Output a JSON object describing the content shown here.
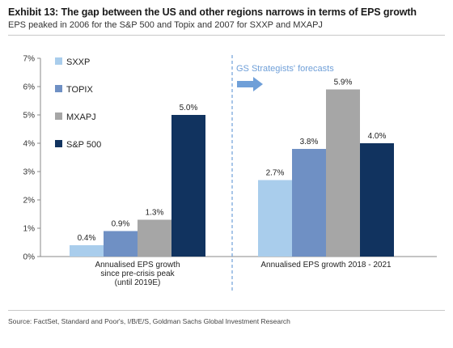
{
  "header": {
    "title": "Exhibit 13: The gap between the US and other regions narrows in terms of EPS growth",
    "subtitle": "EPS peaked in 2006 for the S&P 500 and Topix and 2007 for SXXP and MXAPJ"
  },
  "footer": {
    "source": "Source: FactSet, Standard and Poor's, I/B/E/S, Goldman Sachs Global Investment Research"
  },
  "chart_data": {
    "type": "bar",
    "categories": [
      "Annualised EPS growth since pre-crisis peak (until 2019E)",
      "Annualised EPS growth 2018 - 2021"
    ],
    "category_label_lines": [
      [
        "Annualised EPS growth",
        "since pre-crisis peak",
        "(until 2019E)"
      ],
      [
        "Annualised EPS growth 2018 - 2021"
      ]
    ],
    "series": [
      {
        "name": "SXXP",
        "color": "#a9cdec",
        "values": [
          0.4,
          2.7
        ]
      },
      {
        "name": "TOPIX",
        "color": "#6f90c4",
        "values": [
          0.9,
          3.8
        ]
      },
      {
        "name": "MXAPJ",
        "color": "#a6a6a6",
        "values": [
          1.3,
          5.9
        ]
      },
      {
        "name": "S&P 500",
        "color": "#11335f",
        "values": [
          5.0,
          4.0
        ]
      }
    ],
    "data_labels": [
      [
        "0.4%",
        "2.7%"
      ],
      [
        "0.9%",
        "3.8%"
      ],
      [
        "1.3%",
        "5.9%"
      ],
      [
        "5.0%",
        "4.0%"
      ]
    ],
    "y_ticks": [
      "0%",
      "1%",
      "2%",
      "3%",
      "4%",
      "5%",
      "6%",
      "7%"
    ],
    "ylim": [
      0,
      7
    ],
    "legend_position": "top-left",
    "grid": false,
    "annotation": "GS Strategists' forecasts",
    "annotation_color": "#6f9fd8"
  }
}
